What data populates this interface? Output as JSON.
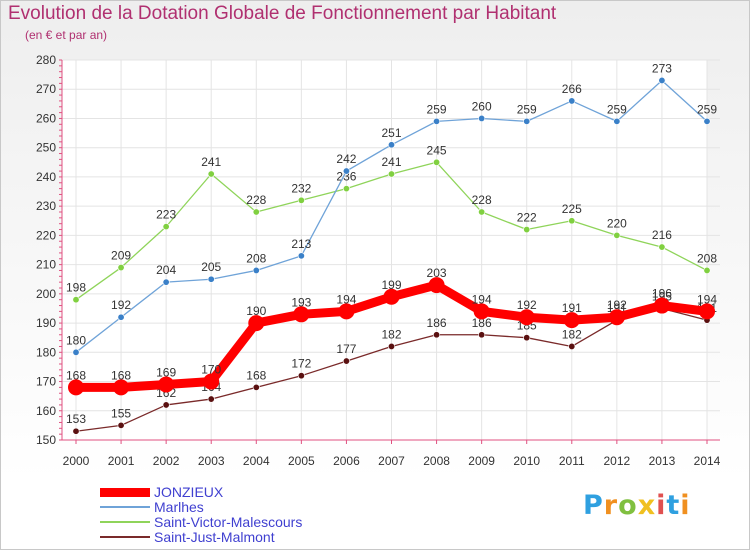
{
  "chart_data": {
    "type": "line",
    "title": "Evolution de la Dotation Globale de Fonctionnement par Habitant",
    "subtitle": "(en € et par an)",
    "xlabel": "",
    "ylabel": "",
    "x": [
      2000,
      2001,
      2002,
      2003,
      2004,
      2005,
      2006,
      2007,
      2008,
      2009,
      2010,
      2011,
      2012,
      2013,
      2014
    ],
    "ylim": [
      150,
      280
    ],
    "yticks": [
      150,
      160,
      170,
      180,
      190,
      200,
      210,
      220,
      230,
      240,
      250,
      260,
      270,
      280
    ],
    "grid": true,
    "legend_position": "bottom-left",
    "series": [
      {
        "name": "JONZIEUX",
        "color": "#ff0000",
        "values": [
          168,
          168,
          169,
          170,
          190,
          193,
          194,
          199,
          203,
          194,
          192,
          191,
          192,
          196,
          194
        ]
      },
      {
        "name": "Marlhes",
        "color": "#6fa3d8",
        "values": [
          180,
          192,
          204,
          205,
          208,
          213,
          242,
          251,
          259,
          260,
          259,
          266,
          259,
          273,
          259
        ]
      },
      {
        "name": "Saint-Victor-Malescours",
        "color": "#8fd45a",
        "values": [
          198,
          209,
          223,
          241,
          228,
          232,
          236,
          241,
          245,
          228,
          222,
          225,
          220,
          216,
          208
        ]
      },
      {
        "name": "Saint-Just-Malmont",
        "color": "#7a2a2a",
        "values": [
          153,
          155,
          162,
          164,
          168,
          172,
          177,
          182,
          186,
          186,
          185,
          182,
          191,
          195,
          191
        ]
      }
    ]
  },
  "logo": {
    "text": "Proxiti",
    "colors": [
      "#2fa0e0",
      "#f09020",
      "#80c040",
      "#f0c020",
      "#e05050",
      "#2fa0e0",
      "#f09020"
    ]
  }
}
